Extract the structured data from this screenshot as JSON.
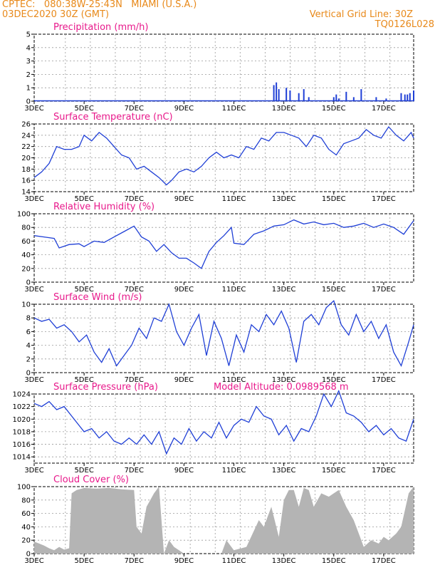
{
  "header": {
    "line1": "CPTEC:   080:38W-25:43N   MIAMI (U.S.A.)",
    "line2": "03DEC2020 30Z (GMT)",
    "grid_label": "Vertical Grid Line: 30Z",
    "code": "TQ0126L028"
  },
  "colors": {
    "line": "#1f3fd6",
    "bar": "#1f3fd6",
    "area": "#b4b4b4",
    "title": "#e8198b",
    "header": "#e8891a"
  },
  "x_ticks": [
    "3DEC",
    "5DEC",
    "7DEC",
    "9DEC",
    "11DEC",
    "13DEC",
    "15DEC",
    "17DEC"
  ],
  "chart_data": [
    {
      "type": "bar",
      "title": "Precipitation (mm/h)",
      "ylim": [
        0,
        5
      ],
      "yticks": [
        0,
        1,
        2,
        3,
        4,
        5
      ],
      "bars": [
        [
          12.6,
          1.2
        ],
        [
          12.7,
          1.4
        ],
        [
          12.8,
          0.9
        ],
        [
          13.1,
          1.0
        ],
        [
          13.25,
          0.8
        ],
        [
          13.6,
          0.6
        ],
        [
          13.8,
          0.9
        ],
        [
          14.0,
          0.3
        ],
        [
          15.0,
          0.3
        ],
        [
          15.1,
          0.5
        ],
        [
          15.2,
          0.2
        ],
        [
          15.5,
          0.7
        ],
        [
          15.8,
          0.3
        ],
        [
          16.1,
          0.9
        ],
        [
          16.7,
          0.3
        ],
        [
          17.1,
          0.2
        ],
        [
          17.7,
          0.6
        ],
        [
          17.85,
          0.5
        ],
        [
          17.95,
          0.5
        ],
        [
          18.05,
          0.6
        ],
        [
          18.2,
          0.8
        ]
      ]
    },
    {
      "type": "line",
      "title": "Surface Temperature (nC)",
      "ylim": [
        14,
        26
      ],
      "yticks": [
        14,
        16,
        18,
        20,
        22,
        24,
        26
      ],
      "x": [
        3.0,
        3.3,
        3.6,
        3.9,
        4.2,
        4.5,
        4.8,
        5.0,
        5.3,
        5.6,
        5.9,
        6.2,
        6.5,
        6.8,
        7.1,
        7.4,
        7.7,
        8.0,
        8.3,
        8.5,
        8.8,
        9.1,
        9.4,
        9.7,
        10.0,
        10.3,
        10.6,
        10.9,
        11.2,
        11.5,
        11.8,
        12.1,
        12.4,
        12.7,
        13.0,
        13.3,
        13.6,
        13.9,
        14.2,
        14.5,
        14.8,
        15.1,
        15.4,
        15.7,
        16.0,
        16.3,
        16.6,
        16.9,
        17.2,
        17.5,
        17.8,
        18.1,
        18.2
      ],
      "values": [
        16.5,
        17.5,
        19.0,
        22.0,
        21.5,
        21.5,
        22.0,
        24.0,
        23.0,
        24.5,
        23.5,
        22.0,
        20.5,
        20.0,
        18.0,
        18.5,
        17.5,
        16.5,
        15.2,
        16.0,
        17.5,
        18.0,
        17.5,
        18.5,
        20.0,
        21.0,
        20.0,
        20.5,
        20.0,
        22.0,
        21.5,
        23.5,
        23.0,
        24.5,
        24.5,
        24.0,
        23.5,
        22.0,
        24.0,
        23.5,
        21.5,
        20.5,
        22.5,
        23.0,
        23.5,
        25.0,
        24.0,
        23.5,
        25.5,
        24.0,
        23.0,
        24.5,
        23.5
      ]
    },
    {
      "type": "line",
      "title": "Relative Humidity (%)",
      "ylim": [
        0,
        100
      ],
      "yticks": [
        0,
        20,
        40,
        60,
        80,
        100
      ],
      "x": [
        3.0,
        3.4,
        3.8,
        4.0,
        4.4,
        4.8,
        5.0,
        5.4,
        5.8,
        6.2,
        6.6,
        7.0,
        7.3,
        7.6,
        7.9,
        8.2,
        8.5,
        8.8,
        9.1,
        9.4,
        9.7,
        10.0,
        10.3,
        10.6,
        10.9,
        11.0,
        11.4,
        11.8,
        12.2,
        12.6,
        13.0,
        13.4,
        13.8,
        14.2,
        14.6,
        15.0,
        15.4,
        15.8,
        16.2,
        16.6,
        17.0,
        17.4,
        17.8,
        18.2
      ],
      "values": [
        68,
        66,
        64,
        50,
        55,
        56,
        52,
        60,
        58,
        66,
        74,
        82,
        66,
        60,
        45,
        55,
        43,
        35,
        35,
        28,
        20,
        45,
        58,
        68,
        80,
        57,
        55,
        70,
        75,
        82,
        84,
        91,
        85,
        88,
        84,
        86,
        80,
        82,
        86,
        80,
        85,
        80,
        70,
        90
      ]
    },
    {
      "type": "line",
      "title": "Surface Wind (m/s)",
      "ylim": [
        0,
        10
      ],
      "yticks": [
        0,
        2,
        4,
        6,
        8,
        10
      ],
      "x": [
        3.0,
        3.3,
        3.6,
        3.9,
        4.2,
        4.5,
        4.8,
        5.1,
        5.4,
        5.7,
        6.0,
        6.3,
        6.6,
        6.9,
        7.2,
        7.5,
        7.8,
        8.1,
        8.4,
        8.7,
        9.0,
        9.3,
        9.6,
        9.9,
        10.2,
        10.5,
        10.8,
        11.1,
        11.4,
        11.7,
        12.0,
        12.3,
        12.6,
        12.9,
        13.2,
        13.5,
        13.8,
        14.1,
        14.4,
        14.7,
        15.0,
        15.3,
        15.6,
        15.9,
        16.2,
        16.5,
        16.8,
        17.1,
        17.4,
        17.7,
        18.0,
        18.2
      ],
      "values": [
        8.0,
        7.5,
        7.8,
        6.5,
        7.0,
        6.0,
        4.5,
        5.5,
        3.0,
        1.5,
        3.5,
        1.0,
        2.5,
        4.0,
        6.5,
        5.0,
        8.0,
        7.5,
        10.0,
        6.0,
        4.0,
        6.5,
        8.5,
        2.5,
        7.5,
        5.0,
        1.0,
        5.5,
        3.0,
        7.0,
        6.0,
        8.5,
        7.0,
        9.0,
        6.5,
        1.5,
        7.5,
        8.5,
        7.0,
        9.5,
        10.5,
        7.0,
        5.5,
        8.5,
        6.0,
        7.5,
        5.0,
        7.0,
        3.0,
        1.0,
        4.5,
        7.0
      ]
    },
    {
      "type": "line",
      "title": "Surface Pressure (hPa)",
      "annotation": "Model Altitude: 0.0989568 m",
      "ylim": [
        1013,
        1024
      ],
      "yticks": [
        1014,
        1016,
        1018,
        1020,
        1022,
        1024
      ],
      "x": [
        3.0,
        3.3,
        3.6,
        3.9,
        4.2,
        4.5,
        4.8,
        5.0,
        5.3,
        5.6,
        5.9,
        6.2,
        6.5,
        6.8,
        7.1,
        7.4,
        7.7,
        8.0,
        8.3,
        8.6,
        8.9,
        9.2,
        9.5,
        9.8,
        10.1,
        10.4,
        10.7,
        11.0,
        11.3,
        11.6,
        11.9,
        12.2,
        12.5,
        12.8,
        13.1,
        13.4,
        13.7,
        14.0,
        14.3,
        14.6,
        14.9,
        15.2,
        15.5,
        15.8,
        16.1,
        16.4,
        16.7,
        17.0,
        17.3,
        17.6,
        17.9,
        18.2
      ],
      "values": [
        1022.5,
        1022.0,
        1022.8,
        1021.5,
        1022.0,
        1020.5,
        1019.0,
        1018.0,
        1018.5,
        1017.0,
        1018.0,
        1016.5,
        1016.0,
        1017.0,
        1016.0,
        1017.5,
        1016.0,
        1018.0,
        1014.5,
        1017.0,
        1016.0,
        1018.5,
        1016.5,
        1018.0,
        1017.0,
        1019.5,
        1017.0,
        1019.0,
        1020.0,
        1019.5,
        1022.0,
        1020.5,
        1020.0,
        1017.5,
        1019.0,
        1016.5,
        1018.5,
        1018.0,
        1020.5,
        1024.0,
        1022.0,
        1024.5,
        1021.0,
        1020.5,
        1019.5,
        1018.0,
        1019.0,
        1017.5,
        1018.5,
        1017.0,
        1016.5,
        1020.0
      ]
    },
    {
      "type": "area",
      "title": "Cloud Cover (%)",
      "ylim": [
        0,
        100
      ],
      "yticks": [
        0,
        20,
        40,
        60,
        80,
        100
      ],
      "x": [
        3.0,
        3.2,
        3.4,
        3.6,
        3.8,
        4.0,
        4.2,
        4.4,
        4.5,
        4.7,
        5.0,
        5.5,
        6.0,
        6.5,
        7.0,
        7.1,
        7.3,
        7.5,
        7.8,
        8.0,
        8.2,
        8.4,
        8.6,
        8.8,
        9.0,
        9.5,
        10.0,
        10.5,
        10.7,
        10.9,
        11.0,
        11.5,
        12.0,
        12.2,
        12.5,
        12.8,
        13.0,
        13.2,
        13.4,
        13.6,
        13.8,
        14.0,
        14.2,
        14.5,
        14.8,
        15.0,
        15.2,
        15.5,
        15.8,
        16.0,
        16.2,
        16.5,
        16.8,
        17.0,
        17.2,
        17.5,
        17.7,
        18.0,
        18.2
      ],
      "values": [
        18,
        15,
        12,
        8,
        5,
        10,
        6,
        8,
        90,
        95,
        98,
        97,
        98,
        96,
        95,
        40,
        30,
        70,
        90,
        100,
        0,
        20,
        10,
        5,
        0,
        0,
        0,
        0,
        20,
        10,
        5,
        10,
        50,
        40,
        70,
        25,
        80,
        95,
        95,
        70,
        98,
        95,
        70,
        90,
        85,
        90,
        95,
        70,
        50,
        30,
        10,
        20,
        15,
        25,
        20,
        30,
        40,
        90,
        100
      ]
    }
  ]
}
